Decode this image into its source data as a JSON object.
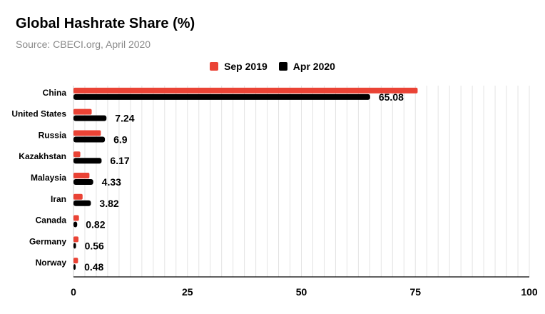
{
  "chart_data": {
    "type": "bar",
    "orientation": "horizontal",
    "title": "Global Hashrate Share (%)",
    "subtitle": "Source: CBECI.org, April 2020",
    "categories": [
      "China",
      "United States",
      "Russia",
      "Kazakhstan",
      "Malaysia",
      "Iran",
      "Canada",
      "Germany",
      "Norway"
    ],
    "series": [
      {
        "name": "Sep 2019",
        "color": "#ea4335",
        "values": [
          75.5,
          4.0,
          6.0,
          1.5,
          3.5,
          2.0,
          1.2,
          1.1,
          1.0
        ]
      },
      {
        "name": "Apr 2020",
        "color": "#000000",
        "values": [
          65.08,
          7.24,
          6.9,
          6.17,
          4.33,
          3.82,
          0.82,
          0.56,
          0.48
        ]
      }
    ],
    "data_labels": [
      "65.08",
      "7.24",
      "6.9",
      "6.17",
      "4.33",
      "3.82",
      "0.82",
      "0.56",
      "0.48"
    ],
    "xlim": [
      0,
      100
    ],
    "xticks": [
      0,
      25,
      50,
      75,
      100
    ],
    "grid": true,
    "legend_position": "top"
  }
}
